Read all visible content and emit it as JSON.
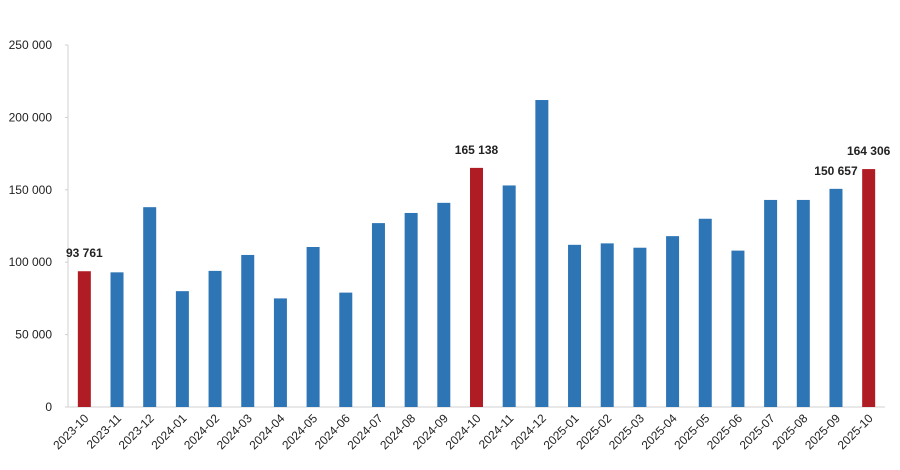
{
  "chart_data": {
    "type": "bar",
    "categories": [
      "2023-10",
      "2023-11",
      "2023-12",
      "2024-01",
      "2024-02",
      "2024-03",
      "2024-04",
      "2024-05",
      "2024-06",
      "2024-07",
      "2024-08",
      "2024-09",
      "2024-10",
      "2024-11",
      "2024-12",
      "2025-01",
      "2025-02",
      "2025-03",
      "2025-04",
      "2025-05",
      "2025-06",
      "2025-07",
      "2025-08",
      "2025-09",
      "2025-10"
    ],
    "values": [
      93761,
      93000,
      138000,
      80000,
      94000,
      105000,
      75000,
      110500,
      79000,
      127000,
      134000,
      141000,
      165138,
      153000,
      212000,
      112000,
      113000,
      110000,
      118000,
      130000,
      108000,
      143000,
      143000,
      150657,
      164306
    ],
    "value_labels": [
      "93 761",
      null,
      null,
      null,
      null,
      null,
      null,
      null,
      null,
      null,
      null,
      null,
      "165 138",
      null,
      null,
      null,
      null,
      null,
      null,
      null,
      null,
      null,
      null,
      "150 657",
      "164 306"
    ],
    "colors": [
      "#b01c24",
      "#2e75b6",
      "#2e75b6",
      "#2e75b6",
      "#2e75b6",
      "#2e75b6",
      "#2e75b6",
      "#2e75b6",
      "#2e75b6",
      "#2e75b6",
      "#2e75b6",
      "#2e75b6",
      "#b01c24",
      "#2e75b6",
      "#2e75b6",
      "#2e75b6",
      "#2e75b6",
      "#2e75b6",
      "#2e75b6",
      "#2e75b6",
      "#2e75b6",
      "#2e75b6",
      "#2e75b6",
      "#2e75b6",
      "#b01c24"
    ],
    "ylim": [
      0,
      250000
    ],
    "yticks": [
      0,
      {
        "value": 50000,
        "label": "50 000"
      },
      {
        "value": 100000,
        "label": "100 000"
      },
      {
        "value": 150000,
        "label": "150 000"
      },
      {
        "value": 200000,
        "label": "200 000"
      },
      {
        "value": 250000,
        "label": "250 000"
      }
    ],
    "grid": false
  }
}
